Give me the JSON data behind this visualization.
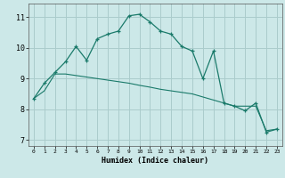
{
  "xlabel": "Humidex (Indice chaleur)",
  "ylabel": "",
  "background_color": "#cce8e8",
  "grid_color": "#aacccc",
  "line_color": "#1a7a6a",
  "xlim": [
    -0.5,
    23.5
  ],
  "ylim": [
    6.8,
    11.45
  ],
  "yticks": [
    7,
    8,
    9,
    10,
    11
  ],
  "xticks": [
    0,
    1,
    2,
    3,
    4,
    5,
    6,
    7,
    8,
    9,
    10,
    11,
    12,
    13,
    14,
    15,
    16,
    17,
    18,
    19,
    20,
    21,
    22,
    23
  ],
  "line1_x": [
    0,
    1,
    2,
    3,
    4,
    5,
    6,
    7,
    8,
    9,
    10,
    11,
    12,
    13,
    14,
    15,
    16,
    17,
    18,
    19,
    20,
    21,
    22,
    23
  ],
  "line1_y": [
    8.35,
    8.85,
    9.2,
    9.55,
    10.05,
    9.6,
    10.3,
    10.45,
    10.55,
    11.05,
    11.1,
    10.85,
    10.55,
    10.45,
    10.05,
    9.9,
    9.0,
    9.9,
    8.2,
    8.1,
    7.95,
    8.2,
    7.25,
    7.35
  ],
  "line2_x": [
    0,
    1,
    2,
    3,
    4,
    5,
    6,
    7,
    8,
    9,
    10,
    11,
    12,
    13,
    14,
    15,
    16,
    17,
    18,
    19,
    20,
    21,
    22,
    23
  ],
  "line2_y": [
    8.35,
    8.6,
    9.15,
    9.15,
    9.1,
    9.05,
    9.0,
    8.95,
    8.9,
    8.85,
    8.78,
    8.72,
    8.65,
    8.6,
    8.55,
    8.5,
    8.4,
    8.3,
    8.2,
    8.1,
    8.1,
    8.1,
    7.3,
    7.35
  ]
}
